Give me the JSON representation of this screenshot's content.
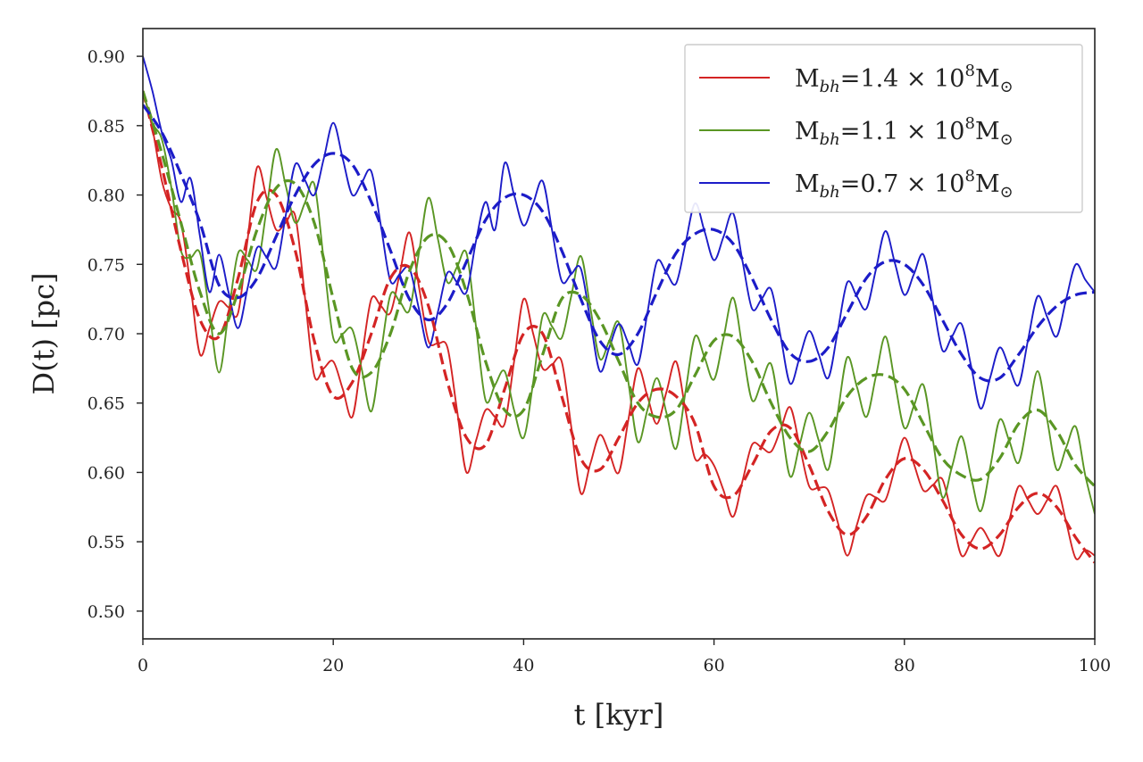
{
  "chart_data": {
    "type": "line",
    "xlabel": "t [kyr]",
    "ylabel": "D(t) [pc]",
    "xlim": [
      0,
      100
    ],
    "ylim": [
      0.48,
      0.92
    ],
    "xticks": [
      0,
      20,
      40,
      60,
      80,
      100
    ],
    "xtick_labels": [
      "0",
      "20",
      "40",
      "60",
      "80",
      "100"
    ],
    "yticks": [
      0.5,
      0.55,
      0.6,
      0.65,
      0.7,
      0.75,
      0.8,
      0.85,
      0.9
    ],
    "ytick_labels": [
      "0.50",
      "0.55",
      "0.60",
      "0.65",
      "0.70",
      "0.75",
      "0.80",
      "0.85",
      "0.90"
    ],
    "grid": false,
    "legend_position": "top-right",
    "series": [
      {
        "name": "M_{bh}=1.4 × 10^{8}M_{⊙}",
        "color": "#d42424",
        "solid": {
          "x_step": 1,
          "y": [
            0.875,
            0.848,
            0.81,
            0.79,
            0.78,
            0.735,
            0.685,
            0.704,
            0.723,
            0.719,
            0.715,
            0.768,
            0.82,
            0.798,
            0.775,
            0.78,
            0.785,
            0.728,
            0.67,
            0.675,
            0.68,
            0.66,
            0.64,
            0.683,
            0.725,
            0.72,
            0.715,
            0.744,
            0.773,
            0.734,
            0.695,
            0.693,
            0.69,
            0.645,
            0.6,
            0.623,
            0.645,
            0.64,
            0.635,
            0.68,
            0.725,
            0.7,
            0.675,
            0.678,
            0.68,
            0.633,
            0.585,
            0.606,
            0.627,
            0.614,
            0.6,
            0.638,
            0.675,
            0.655,
            0.635,
            0.658,
            0.68,
            0.645,
            0.61,
            0.613,
            0.605,
            0.587,
            0.568,
            0.594,
            0.62,
            0.618,
            0.615,
            0.631,
            0.647,
            0.619,
            0.59,
            0.589,
            0.587,
            0.564,
            0.54,
            0.562,
            0.583,
            0.582,
            0.58,
            0.603,
            0.625,
            0.606,
            0.587,
            0.591,
            0.595,
            0.568,
            0.54,
            0.55,
            0.56,
            0.55,
            0.54,
            0.565,
            0.59,
            0.58,
            0.57,
            0.58,
            0.59,
            0.564,
            0.538,
            0.544,
            0.54
          ]
        },
        "dashed": {
          "x_step": 2,
          "y": [
            0.875,
            0.82,
            0.76,
            0.71,
            0.698,
            0.74,
            0.795,
            0.8,
            0.76,
            0.695,
            0.655,
            0.665,
            0.7,
            0.74,
            0.748,
            0.72,
            0.665,
            0.625,
            0.62,
            0.66,
            0.7,
            0.7,
            0.655,
            0.61,
            0.602,
            0.625,
            0.65,
            0.66,
            0.655,
            0.635,
            0.59,
            0.583,
            0.605,
            0.63,
            0.632,
            0.605,
            0.572,
            0.555,
            0.568,
            0.595,
            0.61,
            0.602,
            0.58,
            0.555,
            0.545,
            0.555,
            0.575,
            0.585,
            0.575,
            0.553,
            0.535
          ]
        }
      },
      {
        "name": "M_{bh}=1.1 × 10^{8}M_{⊙}",
        "color": "#5a9624",
        "solid": {
          "x_step": 1,
          "y": [
            0.875,
            0.852,
            0.84,
            0.805,
            0.76,
            0.755,
            0.758,
            0.715,
            0.672,
            0.715,
            0.758,
            0.753,
            0.747,
            0.79,
            0.833,
            0.807,
            0.78,
            0.794,
            0.808,
            0.753,
            0.697,
            0.7,
            0.703,
            0.674,
            0.644,
            0.686,
            0.728,
            0.723,
            0.717,
            0.758,
            0.798,
            0.768,
            0.737,
            0.748,
            0.758,
            0.705,
            0.652,
            0.663,
            0.673,
            0.645,
            0.625,
            0.665,
            0.713,
            0.705,
            0.697,
            0.727,
            0.756,
            0.719,
            0.682,
            0.695,
            0.708,
            0.665,
            0.622,
            0.645,
            0.668,
            0.643,
            0.617,
            0.658,
            0.698,
            0.683,
            0.667,
            0.697,
            0.726,
            0.689,
            0.652,
            0.665,
            0.678,
            0.638,
            0.597,
            0.62,
            0.643,
            0.623,
            0.602,
            0.643,
            0.683,
            0.662,
            0.64,
            0.669,
            0.698,
            0.665,
            0.632,
            0.648,
            0.663,
            0.623,
            0.582,
            0.604,
            0.626,
            0.597,
            0.572,
            0.603,
            0.638,
            0.623,
            0.607,
            0.64,
            0.673,
            0.638,
            0.602,
            0.618,
            0.633,
            0.598,
            0.57
          ]
        },
        "dashed": {
          "x_step": 2,
          "y": [
            0.875,
            0.83,
            0.78,
            0.73,
            0.7,
            0.73,
            0.775,
            0.805,
            0.808,
            0.78,
            0.725,
            0.675,
            0.672,
            0.7,
            0.745,
            0.77,
            0.765,
            0.73,
            0.68,
            0.645,
            0.645,
            0.685,
            0.725,
            0.728,
            0.71,
            0.68,
            0.65,
            0.64,
            0.645,
            0.67,
            0.695,
            0.698,
            0.68,
            0.65,
            0.625,
            0.615,
            0.63,
            0.655,
            0.668,
            0.67,
            0.66,
            0.635,
            0.61,
            0.598,
            0.595,
            0.61,
            0.635,
            0.645,
            0.63,
            0.605,
            0.59
          ]
        }
      },
      {
        "name": "M_{bh}=0.7 × 10^{8}M_{⊙}",
        "color": "#1c1cc8",
        "solid": {
          "x_step": 1,
          "y": [
            0.9,
            0.875,
            0.845,
            0.825,
            0.795,
            0.812,
            0.77,
            0.73,
            0.757,
            0.73,
            0.704,
            0.733,
            0.762,
            0.755,
            0.748,
            0.785,
            0.822,
            0.811,
            0.8,
            0.826,
            0.852,
            0.826,
            0.8,
            0.809,
            0.817,
            0.778,
            0.738,
            0.743,
            0.747,
            0.718,
            0.69,
            0.716,
            0.744,
            0.737,
            0.73,
            0.767,
            0.795,
            0.775,
            0.823,
            0.8,
            0.778,
            0.794,
            0.81,
            0.774,
            0.738,
            0.743,
            0.747,
            0.71,
            0.673,
            0.69,
            0.707,
            0.693,
            0.678,
            0.715,
            0.752,
            0.744,
            0.736,
            0.765,
            0.794,
            0.774,
            0.753,
            0.77,
            0.787,
            0.752,
            0.718,
            0.725,
            0.732,
            0.698,
            0.664,
            0.683,
            0.702,
            0.685,
            0.668,
            0.702,
            0.737,
            0.727,
            0.718,
            0.746,
            0.774,
            0.751,
            0.728,
            0.743,
            0.757,
            0.723,
            0.688,
            0.698,
            0.707,
            0.677,
            0.646,
            0.668,
            0.69,
            0.676,
            0.663,
            0.696,
            0.727,
            0.712,
            0.698,
            0.725,
            0.75,
            0.739,
            0.73
          ]
        },
        "dashed": {
          "x_step": 2,
          "y": [
            0.865,
            0.845,
            0.815,
            0.78,
            0.735,
            0.726,
            0.74,
            0.77,
            0.8,
            0.822,
            0.83,
            0.822,
            0.795,
            0.76,
            0.725,
            0.71,
            0.722,
            0.752,
            0.782,
            0.798,
            0.8,
            0.788,
            0.76,
            0.725,
            0.695,
            0.685,
            0.7,
            0.73,
            0.758,
            0.772,
            0.775,
            0.765,
            0.74,
            0.71,
            0.686,
            0.68,
            0.69,
            0.715,
            0.74,
            0.752,
            0.75,
            0.735,
            0.71,
            0.685,
            0.668,
            0.668,
            0.685,
            0.705,
            0.72,
            0.728,
            0.73
          ]
        }
      }
    ]
  }
}
